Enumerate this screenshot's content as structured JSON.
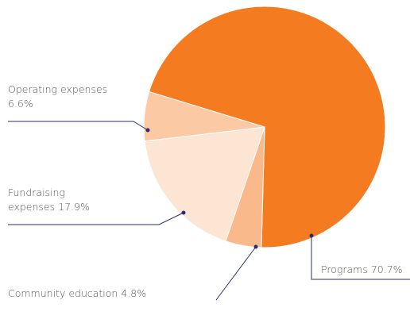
{
  "chart_data": {
    "type": "pie",
    "categories": [
      "Programs",
      "Community education",
      "Fundraising expenses",
      "Operating expenses"
    ],
    "values": [
      70.7,
      4.8,
      17.9,
      6.6
    ],
    "value_labels": [
      "70.7%",
      "4.8%",
      "17.9%",
      "6.6%"
    ],
    "colors": [
      "#f47b20",
      "#f9b98a",
      "#fde5d4",
      "#fbc9a3"
    ]
  }
}
